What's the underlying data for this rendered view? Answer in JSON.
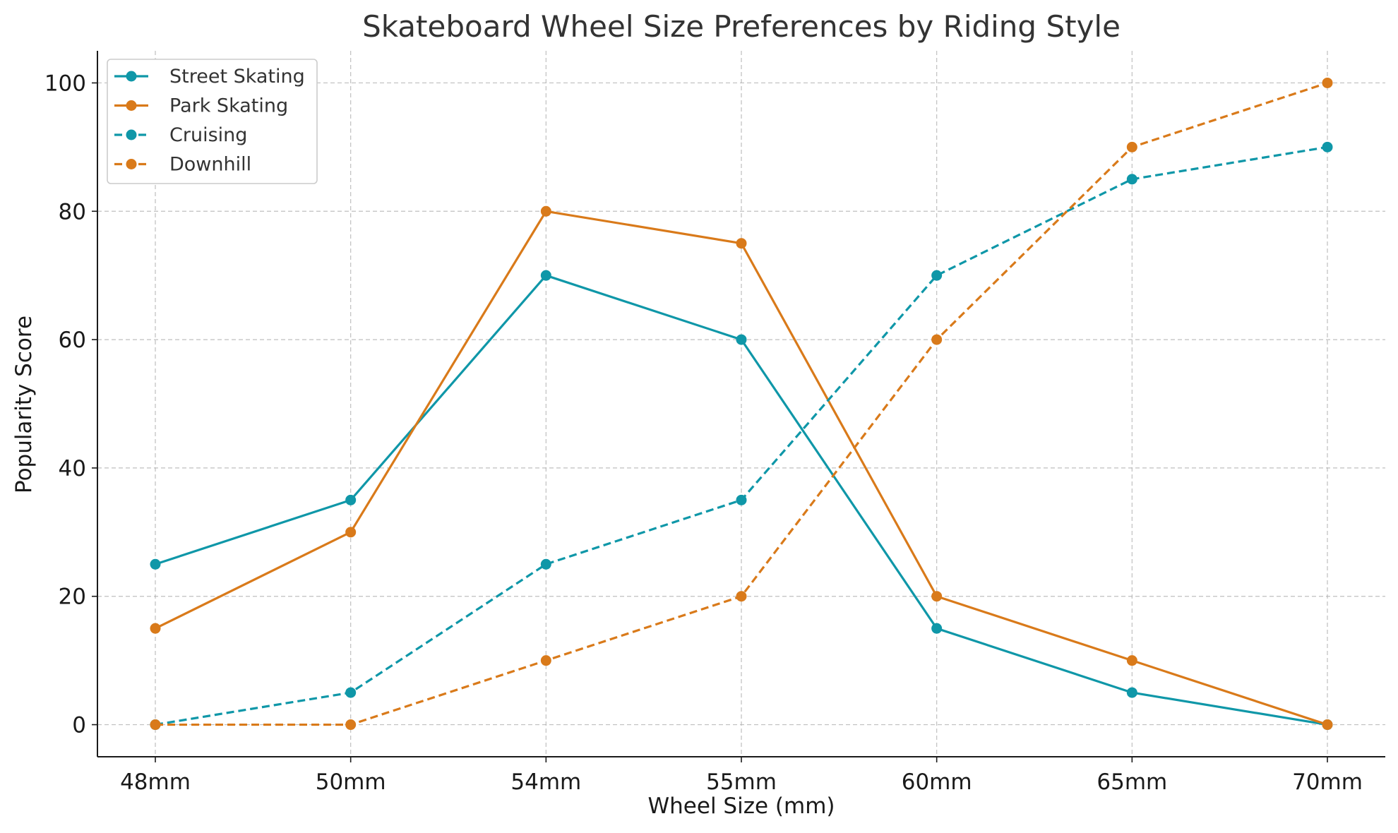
{
  "chart_data": {
    "type": "line",
    "title": "Skateboard Wheel Size Preferences by Riding Style",
    "xlabel": "Wheel Size (mm)",
    "ylabel": "Popularity Score",
    "categories": [
      "48mm",
      "50mm",
      "54mm",
      "55mm",
      "60mm",
      "65mm",
      "70mm"
    ],
    "ylim": [
      -5,
      105
    ],
    "yticks": [
      0,
      20,
      40,
      60,
      80,
      100
    ],
    "grid": true,
    "legend_position": "top-left",
    "series": [
      {
        "name": "Street Skating",
        "values": [
          25,
          35,
          70,
          60,
          15,
          5,
          0
        ],
        "color": "#0f97a8",
        "style": "solid"
      },
      {
        "name": "Park Skating",
        "values": [
          15,
          30,
          80,
          75,
          20,
          10,
          0
        ],
        "color": "#d97a1a",
        "style": "solid"
      },
      {
        "name": "Cruising",
        "values": [
          0,
          5,
          25,
          35,
          70,
          85,
          90
        ],
        "color": "#0f97a8",
        "style": "dashed"
      },
      {
        "name": "Downhill",
        "values": [
          0,
          0,
          10,
          20,
          60,
          90,
          100
        ],
        "color": "#d97a1a",
        "style": "dashed"
      }
    ]
  }
}
